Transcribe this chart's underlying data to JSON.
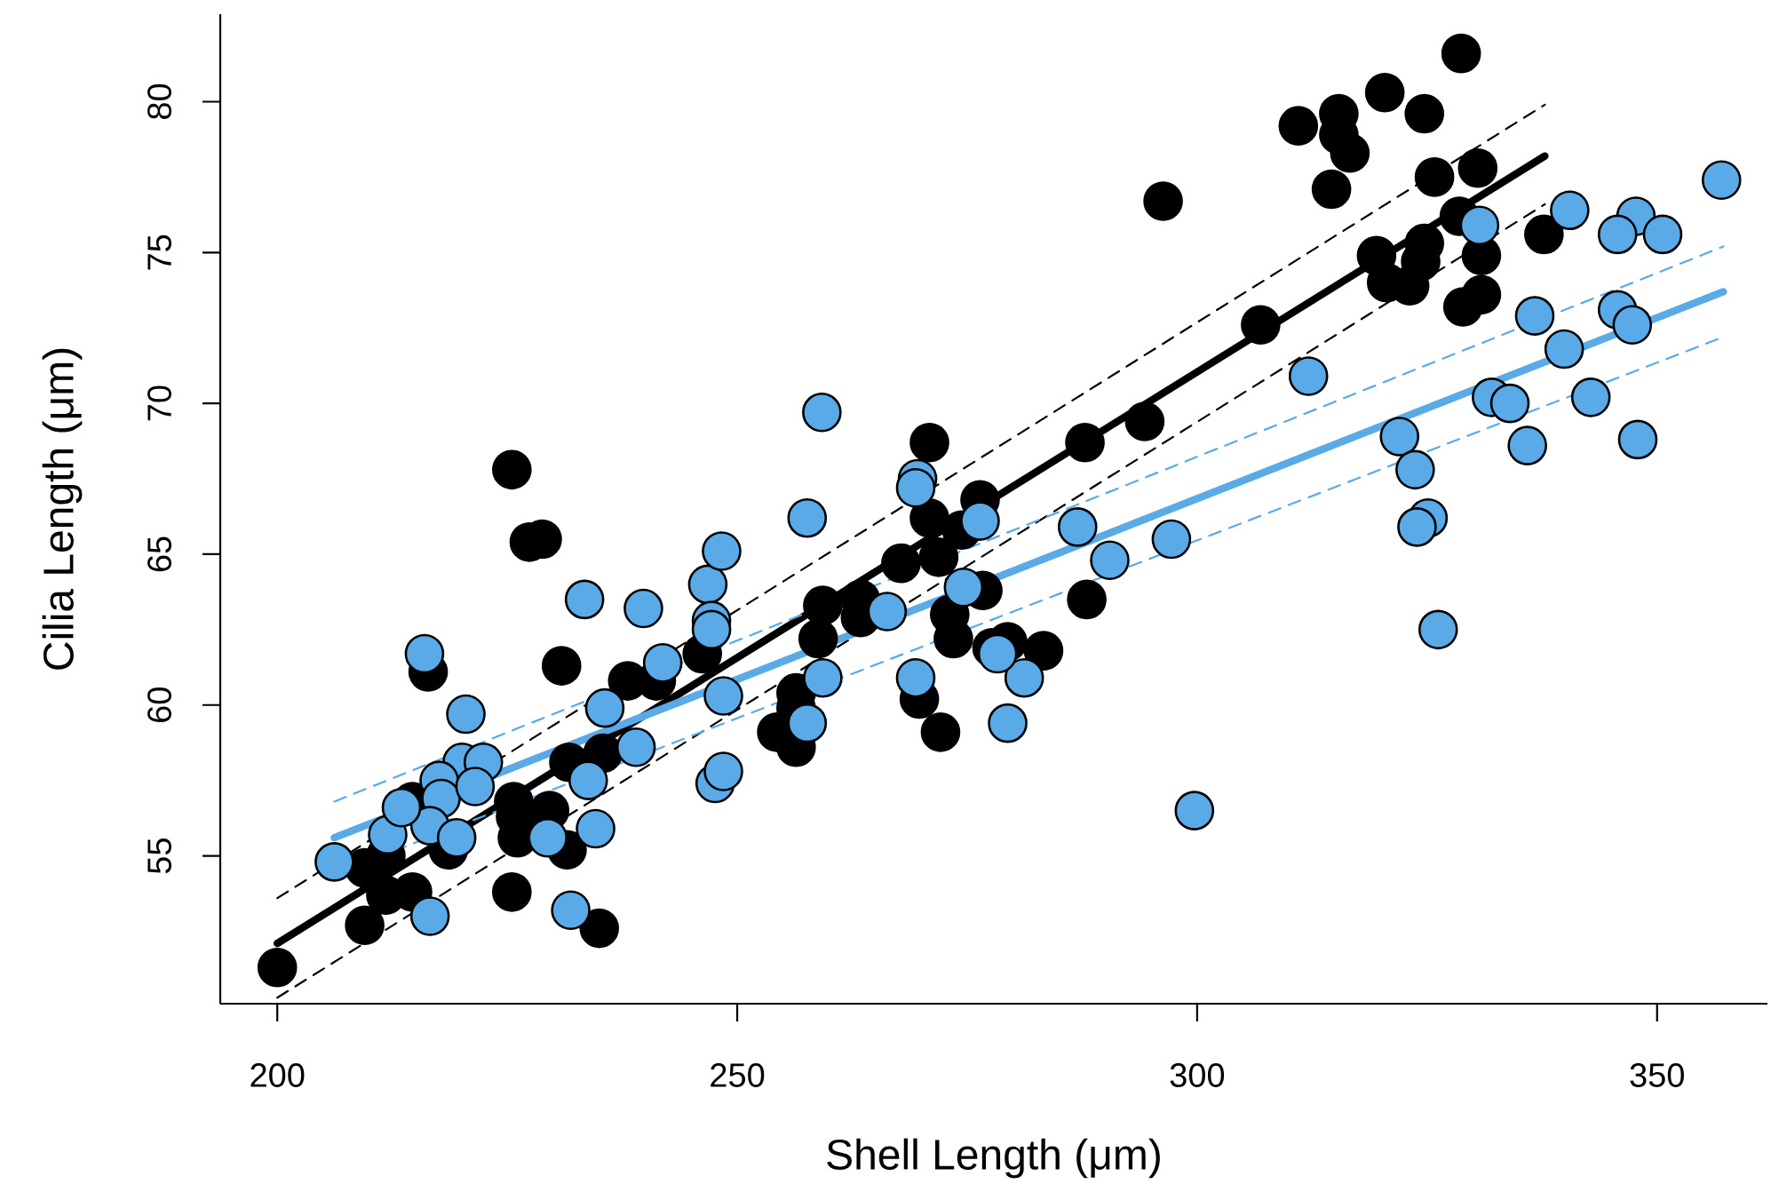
{
  "chart_data": {
    "type": "scatter",
    "xlabel": "Shell Length (μm)",
    "ylabel": "Cilia Length (μm)",
    "xlim": [
      193.8,
      362
    ],
    "ylim": [
      50.1,
      82.9
    ],
    "xticks": [
      200,
      250,
      300,
      350
    ],
    "yticks": [
      55,
      60,
      65,
      70,
      75,
      80
    ],
    "series": [
      {
        "color": "#000000",
        "marker": "circle",
        "x": [
          200.0,
          209.5,
          209.5,
          211.8,
          214.7,
          211.8,
          218.6,
          216.4,
          214.7,
          225.5,
          227.4,
          228.8,
          230.9,
          225.7,
          225.9,
          226.1,
          225.5,
          229.6,
          231.5,
          235.0,
          231.7,
          235.4,
          238.1,
          241.2,
          246.2,
          270.9,
          287.8,
          294.3,
          270.9,
          276.4,
          274.4,
          271.9,
          267.8,
          259.3,
          263.4,
          263.4,
          258.8,
          276.7,
          273.1,
          273.5,
          288.0,
          277.7,
          279.4,
          283.3,
          256.4,
          256.4,
          254.3,
          256.4,
          269.8,
          272.1,
          328.7,
          320.4,
          315.4,
          311.0,
          315.4,
          316.6,
          324.7,
          314.6,
          325.8,
          330.5,
          328.5,
          319.5,
          324.7,
          324.3,
          320.6,
          323.1,
          330.9,
          337.7,
          328.9,
          330.9,
          306.9,
          296.3
        ],
        "values": [
          51.3,
          52.7,
          54.6,
          53.7,
          53.8,
          55.0,
          55.2,
          61.1,
          56.8,
          67.8,
          65.4,
          65.5,
          61.3,
          56.8,
          56.3,
          55.6,
          53.8,
          56.5,
          55.2,
          52.6,
          58.1,
          58.4,
          60.8,
          60.8,
          61.7,
          68.7,
          68.7,
          69.4,
          66.2,
          66.8,
          65.8,
          64.9,
          64.7,
          63.3,
          63.5,
          62.9,
          62.2,
          63.8,
          63.0,
          62.2,
          63.5,
          61.9,
          62.1,
          61.8,
          60.4,
          59.9,
          59.1,
          58.6,
          60.2,
          59.1,
          81.6,
          80.3,
          79.6,
          79.2,
          78.9,
          78.3,
          79.6,
          77.1,
          77.5,
          77.8,
          76.2,
          74.9,
          75.3,
          74.7,
          74.0,
          73.9,
          74.9,
          75.6,
          73.2,
          73.6,
          72.6,
          76.7
        ]
      },
      {
        "color": "#5aaae8",
        "marker": "circle",
        "x": [
          206.2,
          212.0,
          216.6,
          216.0,
          220.5,
          220.1,
          222.4,
          217.6,
          217.8,
          216.6,
          213.5,
          221.5,
          219.5,
          233.4,
          239.8,
          246.8,
          248.3,
          247.2,
          247.2,
          241.9,
          235.6,
          239.0,
          233.8,
          229.4,
          234.6,
          231.9,
          247.6,
          248.5,
          248.5,
          259.2,
          257.6,
          269.6,
          269.4,
          276.4,
          287.0,
          290.5,
          297.2,
          274.6,
          266.3,
          259.3,
          269.4,
          281.2,
          278.3,
          257.6,
          279.4,
          299.7,
          357.0,
          340.5,
          347.7,
          345.7,
          350.6,
          330.7,
          336.7,
          345.7,
          347.3,
          339.9,
          312.1,
          332.0,
          334.0,
          342.8,
          322.0,
          335.9,
          347.9,
          323.7,
          325.1,
          323.9,
          326.2
        ],
        "values": [
          54.8,
          55.7,
          53.0,
          61.7,
          59.7,
          58.1,
          58.1,
          57.5,
          56.9,
          56.0,
          56.6,
          57.3,
          55.6,
          63.5,
          63.2,
          64.0,
          65.1,
          62.8,
          62.5,
          61.4,
          59.9,
          58.6,
          57.5,
          55.6,
          55.9,
          53.2,
          57.4,
          57.8,
          60.3,
          69.7,
          66.2,
          67.5,
          67.2,
          66.1,
          65.9,
          64.8,
          65.5,
          63.9,
          63.1,
          60.9,
          60.9,
          60.9,
          61.7,
          59.4,
          59.4,
          56.5,
          77.4,
          76.4,
          76.2,
          75.6,
          75.6,
          75.9,
          72.9,
          73.1,
          72.6,
          71.8,
          70.9,
          70.2,
          70.0,
          70.2,
          68.9,
          68.6,
          68.8,
          67.8,
          66.2,
          65.9,
          62.5
        ]
      },
      {
        "type": "line",
        "color": "#000000",
        "marker": "none",
        "line_style": "solid",
        "x": [
          200.0,
          337.8
        ],
        "values": [
          52.1,
          78.2
        ]
      },
      {
        "type": "line",
        "color": "#000000",
        "marker": "none",
        "line_style": "dashed",
        "x": [
          200.0,
          337.8
        ],
        "values": [
          53.6,
          79.9
        ]
      },
      {
        "type": "line",
        "color": "#000000",
        "marker": "none",
        "line_style": "dashed",
        "x": [
          200.0,
          337.8
        ],
        "values": [
          50.3,
          76.6
        ]
      },
      {
        "type": "line",
        "color": "#5aaae8",
        "marker": "none",
        "line_style": "solid",
        "x": [
          206.2,
          357.2
        ],
        "values": [
          55.6,
          73.7
        ]
      },
      {
        "type": "line",
        "color": "#5aaae8",
        "marker": "none",
        "line_style": "dashed",
        "x": [
          206.2,
          357.2
        ],
        "values": [
          56.8,
          75.2
        ]
      },
      {
        "type": "line",
        "color": "#5aaae8",
        "marker": "none",
        "line_style": "dashed",
        "x": [
          206.2,
          357.2
        ],
        "values": [
          54.4,
          72.2
        ]
      }
    ]
  }
}
